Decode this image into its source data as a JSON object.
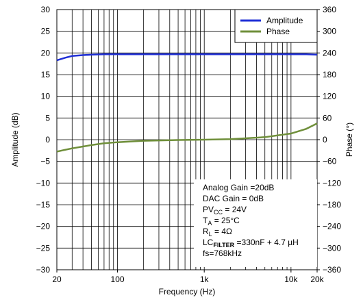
{
  "chart_data": {
    "type": "line",
    "x_label": "Frequency (Hz)",
    "y_label": "Amplitude (dB)",
    "y2_label": "Phase (°)",
    "log_x": true,
    "x": [
      20,
      25,
      30,
      40,
      50,
      70,
      100,
      200,
      500,
      1000,
      2000,
      5000,
      10000,
      15000,
      20000
    ],
    "series": [
      {
        "name": "Amplitude",
        "color": "#1f2fd6",
        "values": [
          18.3,
          18.9,
          19.3,
          19.5,
          19.6,
          19.7,
          19.7,
          19.7,
          19.7,
          19.7,
          19.7,
          19.7,
          19.7,
          19.7,
          19.6
        ]
      },
      {
        "name": "Phase",
        "color": "#6f8f3a",
        "axis": "y2",
        "values": [
          -33,
          -28,
          -24,
          -19,
          -15,
          -10,
          -7,
          -3,
          -1,
          0,
          1.5,
          7,
          17,
          30,
          45
        ]
      }
    ],
    "xlim": [
      20,
      20000
    ],
    "xticks": [
      20,
      100,
      {
        "value": 1000,
        "label": "1k"
      },
      {
        "value": 10000,
        "label": "10k"
      },
      {
        "value": 20000,
        "label": "20k"
      }
    ],
    "x_grid": [
      20,
      30,
      40,
      50,
      60,
      70,
      80,
      90,
      100,
      200,
      300,
      400,
      500,
      600,
      700,
      800,
      900,
      1000,
      2000,
      3000,
      4000,
      5000,
      6000,
      7000,
      8000,
      9000,
      10000,
      20000
    ],
    "ylim": [
      -30,
      30
    ],
    "yticks": [
      {
        "value": -30,
        "label": "−30"
      },
      {
        "value": -25,
        "label": "−25"
      },
      {
        "value": -20,
        "label": "−20"
      },
      {
        "value": -15,
        "label": "−15"
      },
      {
        "value": -10,
        "label": "−10"
      },
      {
        "value": -5,
        "label": "−5"
      },
      0,
      5,
      10,
      15,
      20,
      25,
      30
    ],
    "y2lim": [
      -360,
      360
    ],
    "y2ticks": [
      {
        "value": -360,
        "label": "−360"
      },
      {
        "value": -300,
        "label": "−300"
      },
      {
        "value": -240,
        "label": "−240"
      },
      {
        "value": -180,
        "label": "−180"
      },
      {
        "value": -120,
        "label": "−120"
      },
      {
        "value": -60,
        "label": "−60"
      },
      0,
      60,
      120,
      180,
      240,
      300,
      360
    ],
    "grid": true,
    "legend": "upper right",
    "annotation": [
      [
        {
          "t": "Analog Gain =20dB"
        }
      ],
      [
        {
          "t": "DAC Gain = 0dB"
        }
      ],
      [
        {
          "t": "PV"
        },
        {
          "sub": "CC"
        },
        {
          "t": " = 24V"
        }
      ],
      [
        {
          "t": "T"
        },
        {
          "sub": "A"
        },
        {
          "t": " = 25°C"
        }
      ],
      [
        {
          "t": "R"
        },
        {
          "sub": "L"
        },
        {
          "t": " = 4Ω"
        }
      ],
      [
        {
          "t": "LC"
        },
        {
          "sub": "FILTER"
        },
        {
          "t": " =330nF + 4.7 µH"
        }
      ],
      [
        {
          "t": "fs=768kHz"
        }
      ]
    ]
  }
}
